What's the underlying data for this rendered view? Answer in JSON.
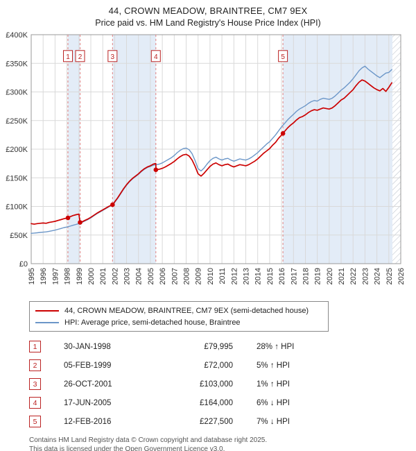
{
  "title": "44, CROWN MEADOW, BRAINTREE, CM7 9EX",
  "subtitle": "Price paid vs. HM Land Registry's House Price Index (HPI)",
  "chart_data": {
    "type": "line",
    "x_range": [
      1995,
      2026
    ],
    "ylim": [
      0,
      400
    ],
    "units": "GBP thousands",
    "y_ticks": [
      0,
      50,
      100,
      150,
      200,
      250,
      300,
      350,
      400
    ],
    "y_tick_labels": [
      "£0",
      "£50K",
      "£100K",
      "£150K",
      "£200K",
      "£250K",
      "£300K",
      "£350K",
      "£400K"
    ],
    "x_ticks": [
      1995,
      1996,
      1997,
      1998,
      1999,
      2000,
      2001,
      2002,
      2003,
      2004,
      2005,
      2006,
      2007,
      2008,
      2009,
      2010,
      2011,
      2012,
      2013,
      2014,
      2015,
      2016,
      2017,
      2018,
      2019,
      2020,
      2021,
      2022,
      2023,
      2024,
      2025,
      2026
    ],
    "grid": true,
    "legend_position": "bottom",
    "colors": {
      "band": "#e3ecf7",
      "sale_line": "#e08080",
      "grid": "#d9d9d9",
      "border": "#999999"
    },
    "bands": [
      [
        1998.08,
        1999.1
      ],
      [
        2001.82,
        2005.46
      ],
      [
        2016.12,
        2025.3
      ]
    ],
    "hatch_start": 2025.3,
    "series": [
      {
        "name": "44, CROWN MEADOW, BRAINTREE, CM7 9EX (semi-detached house)",
        "color": "#cc0000",
        "width": 1.7,
        "points": [
          [
            1995.0,
            70
          ],
          [
            1995.25,
            69
          ],
          [
            1995.5,
            70
          ],
          [
            1995.75,
            70.5
          ],
          [
            1996.0,
            71
          ],
          [
            1996.25,
            70.5
          ],
          [
            1996.5,
            72
          ],
          [
            1996.75,
            73
          ],
          [
            1997.0,
            74
          ],
          [
            1997.25,
            75.5
          ],
          [
            1997.5,
            77
          ],
          [
            1997.75,
            78.5
          ],
          [
            1998.08,
            80
          ],
          [
            1998.25,
            82
          ],
          [
            1998.5,
            84
          ],
          [
            1998.75,
            85.5
          ],
          [
            1999.0,
            86.5
          ],
          [
            1999.1,
            72
          ],
          [
            1999.25,
            73
          ],
          [
            1999.5,
            75.5
          ],
          [
            1999.75,
            78
          ],
          [
            2000.0,
            81
          ],
          [
            2000.25,
            84.5
          ],
          [
            2000.5,
            88
          ],
          [
            2000.75,
            91
          ],
          [
            2001.0,
            94
          ],
          [
            2001.25,
            97
          ],
          [
            2001.5,
            100
          ],
          [
            2001.82,
            103
          ],
          [
            2002.0,
            108
          ],
          [
            2002.25,
            115
          ],
          [
            2002.5,
            123
          ],
          [
            2002.75,
            131
          ],
          [
            2003.0,
            138
          ],
          [
            2003.25,
            144
          ],
          [
            2003.5,
            149
          ],
          [
            2003.75,
            153
          ],
          [
            2004.0,
            157
          ],
          [
            2004.25,
            162
          ],
          [
            2004.5,
            166
          ],
          [
            2004.75,
            169
          ],
          [
            2005.0,
            171
          ],
          [
            2005.25,
            174
          ],
          [
            2005.45,
            175
          ],
          [
            2005.47,
            164
          ],
          [
            2005.75,
            165
          ],
          [
            2006.0,
            166.5
          ],
          [
            2006.25,
            169
          ],
          [
            2006.5,
            172
          ],
          [
            2006.75,
            175
          ],
          [
            2007.0,
            178.5
          ],
          [
            2007.25,
            183
          ],
          [
            2007.5,
            187
          ],
          [
            2007.75,
            190
          ],
          [
            2008.0,
            191
          ],
          [
            2008.25,
            188
          ],
          [
            2008.5,
            181
          ],
          [
            2008.75,
            170
          ],
          [
            2009.0,
            157
          ],
          [
            2009.25,
            153
          ],
          [
            2009.5,
            158
          ],
          [
            2009.75,
            164
          ],
          [
            2010.0,
            170
          ],
          [
            2010.25,
            174
          ],
          [
            2010.5,
            176
          ],
          [
            2010.75,
            173
          ],
          [
            2011.0,
            171
          ],
          [
            2011.25,
            173
          ],
          [
            2011.5,
            174
          ],
          [
            2011.75,
            171
          ],
          [
            2012.0,
            169
          ],
          [
            2012.25,
            171
          ],
          [
            2012.5,
            173
          ],
          [
            2012.75,
            172
          ],
          [
            2013.0,
            171
          ],
          [
            2013.25,
            173
          ],
          [
            2013.5,
            176
          ],
          [
            2013.75,
            179
          ],
          [
            2014.0,
            183
          ],
          [
            2014.25,
            188
          ],
          [
            2014.5,
            193
          ],
          [
            2014.75,
            197
          ],
          [
            2015.0,
            201
          ],
          [
            2015.25,
            207
          ],
          [
            2015.5,
            212
          ],
          [
            2015.75,
            219
          ],
          [
            2016.12,
            227.5
          ],
          [
            2016.25,
            231
          ],
          [
            2016.5,
            237
          ],
          [
            2016.75,
            242
          ],
          [
            2017.0,
            246
          ],
          [
            2017.25,
            251
          ],
          [
            2017.5,
            255
          ],
          [
            2017.75,
            257
          ],
          [
            2018.0,
            260
          ],
          [
            2018.25,
            264
          ],
          [
            2018.5,
            267
          ],
          [
            2018.75,
            269
          ],
          [
            2019.0,
            268
          ],
          [
            2019.25,
            270
          ],
          [
            2019.5,
            272
          ],
          [
            2019.75,
            271
          ],
          [
            2020.0,
            270
          ],
          [
            2020.25,
            272
          ],
          [
            2020.5,
            276
          ],
          [
            2020.75,
            281
          ],
          [
            2021.0,
            286
          ],
          [
            2021.25,
            289
          ],
          [
            2021.5,
            294
          ],
          [
            2021.75,
            299
          ],
          [
            2022.0,
            304
          ],
          [
            2022.25,
            311
          ],
          [
            2022.5,
            317
          ],
          [
            2022.75,
            321
          ],
          [
            2023.0,
            319
          ],
          [
            2023.25,
            315
          ],
          [
            2023.5,
            311
          ],
          [
            2023.75,
            307
          ],
          [
            2024.0,
            304
          ],
          [
            2024.25,
            302
          ],
          [
            2024.5,
            306
          ],
          [
            2024.75,
            301
          ],
          [
            2025.0,
            308
          ],
          [
            2025.25,
            316
          ]
        ]
      },
      {
        "name": "HPI: Average price, semi-detached house, Braintree",
        "color": "#6b96c8",
        "width": 1.4,
        "points": [
          [
            1995.0,
            53
          ],
          [
            1995.25,
            53.5
          ],
          [
            1995.5,
            54
          ],
          [
            1995.75,
            54.5
          ],
          [
            1996.0,
            55
          ],
          [
            1996.25,
            55.5
          ],
          [
            1996.5,
            56.5
          ],
          [
            1996.75,
            57.5
          ],
          [
            1997.0,
            58.5
          ],
          [
            1997.25,
            60
          ],
          [
            1997.5,
            61.5
          ],
          [
            1997.75,
            63
          ],
          [
            1998.0,
            64
          ],
          [
            1998.25,
            65.5
          ],
          [
            1998.5,
            67
          ],
          [
            1998.75,
            68.5
          ],
          [
            1999.0,
            70
          ],
          [
            1999.25,
            72
          ],
          [
            1999.5,
            74.5
          ],
          [
            1999.75,
            77
          ],
          [
            2000.0,
            80
          ],
          [
            2000.25,
            83.5
          ],
          [
            2000.5,
            87
          ],
          [
            2000.75,
            90
          ],
          [
            2001.0,
            93
          ],
          [
            2001.25,
            96
          ],
          [
            2001.5,
            99
          ],
          [
            2001.75,
            102
          ],
          [
            2002.0,
            107
          ],
          [
            2002.25,
            114
          ],
          [
            2002.5,
            122
          ],
          [
            2002.75,
            130
          ],
          [
            2003.0,
            137
          ],
          [
            2003.25,
            143
          ],
          [
            2003.5,
            148
          ],
          [
            2003.75,
            152
          ],
          [
            2004.0,
            156
          ],
          [
            2004.25,
            161
          ],
          [
            2004.5,
            165
          ],
          [
            2004.75,
            168
          ],
          [
            2005.0,
            170
          ],
          [
            2005.25,
            172
          ],
          [
            2005.5,
            173
          ],
          [
            2005.75,
            174
          ],
          [
            2006.0,
            176
          ],
          [
            2006.25,
            179
          ],
          [
            2006.5,
            182
          ],
          [
            2006.75,
            185
          ],
          [
            2007.0,
            189
          ],
          [
            2007.25,
            194
          ],
          [
            2007.5,
            198
          ],
          [
            2007.75,
            201
          ],
          [
            2008.0,
            202
          ],
          [
            2008.25,
            199
          ],
          [
            2008.5,
            192
          ],
          [
            2008.75,
            180
          ],
          [
            2009.0,
            166
          ],
          [
            2009.25,
            162
          ],
          [
            2009.5,
            167
          ],
          [
            2009.75,
            174
          ],
          [
            2010.0,
            180
          ],
          [
            2010.25,
            184
          ],
          [
            2010.5,
            186
          ],
          [
            2010.75,
            183
          ],
          [
            2011.0,
            181
          ],
          [
            2011.25,
            183
          ],
          [
            2011.5,
            184
          ],
          [
            2011.75,
            181
          ],
          [
            2012.0,
            179
          ],
          [
            2012.25,
            181
          ],
          [
            2012.5,
            183
          ],
          [
            2012.75,
            182
          ],
          [
            2013.0,
            181
          ],
          [
            2013.25,
            183
          ],
          [
            2013.5,
            186
          ],
          [
            2013.75,
            190
          ],
          [
            2014.0,
            194
          ],
          [
            2014.25,
            199
          ],
          [
            2014.5,
            204
          ],
          [
            2014.75,
            209
          ],
          [
            2015.0,
            213
          ],
          [
            2015.25,
            219
          ],
          [
            2015.5,
            225
          ],
          [
            2015.75,
            232
          ],
          [
            2016.0,
            239
          ],
          [
            2016.25,
            245
          ],
          [
            2016.5,
            251
          ],
          [
            2016.75,
            256
          ],
          [
            2017.0,
            261
          ],
          [
            2017.25,
            266
          ],
          [
            2017.5,
            270
          ],
          [
            2017.75,
            273
          ],
          [
            2018.0,
            276
          ],
          [
            2018.25,
            280
          ],
          [
            2018.5,
            283
          ],
          [
            2018.75,
            285
          ],
          [
            2019.0,
            284
          ],
          [
            2019.25,
            287
          ],
          [
            2019.5,
            289
          ],
          [
            2019.75,
            288
          ],
          [
            2020.0,
            287
          ],
          [
            2020.25,
            289
          ],
          [
            2020.5,
            293
          ],
          [
            2020.75,
            298
          ],
          [
            2021.0,
            303
          ],
          [
            2021.25,
            307
          ],
          [
            2021.5,
            312
          ],
          [
            2021.75,
            317
          ],
          [
            2022.0,
            323
          ],
          [
            2022.25,
            330
          ],
          [
            2022.5,
            337
          ],
          [
            2022.75,
            342
          ],
          [
            2023.0,
            345
          ],
          [
            2023.25,
            340
          ],
          [
            2023.5,
            336
          ],
          [
            2023.75,
            332
          ],
          [
            2024.0,
            328
          ],
          [
            2024.25,
            325
          ],
          [
            2024.5,
            329
          ],
          [
            2024.75,
            333
          ],
          [
            2025.0,
            334
          ],
          [
            2025.25,
            339
          ]
        ]
      }
    ],
    "sales": [
      {
        "n": "1",
        "x": 1998.08,
        "y": 80
      },
      {
        "n": "2",
        "x": 1999.1,
        "y": 72
      },
      {
        "n": "3",
        "x": 2001.82,
        "y": 103
      },
      {
        "n": "4",
        "x": 2005.46,
        "y": 164
      },
      {
        "n": "5",
        "x": 2016.12,
        "y": 227.5
      }
    ]
  },
  "table": {
    "rows": [
      {
        "num": "1",
        "date": "30-JAN-1998",
        "price": "£79,995",
        "hpi": "28% ↑ HPI"
      },
      {
        "num": "2",
        "date": "05-FEB-1999",
        "price": "£72,000",
        "hpi": "5% ↑ HPI"
      },
      {
        "num": "3",
        "date": "26-OCT-2001",
        "price": "£103,000",
        "hpi": "1% ↑ HPI"
      },
      {
        "num": "4",
        "date": "17-JUN-2005",
        "price": "£164,000",
        "hpi": "6% ↓ HPI"
      },
      {
        "num": "5",
        "date": "12-FEB-2016",
        "price": "£227,500",
        "hpi": "7% ↓ HPI"
      }
    ]
  },
  "footer": {
    "line1": "Contains HM Land Registry data © Crown copyright and database right 2025.",
    "line2": "This data is licensed under the Open Government Licence v3.0."
  }
}
